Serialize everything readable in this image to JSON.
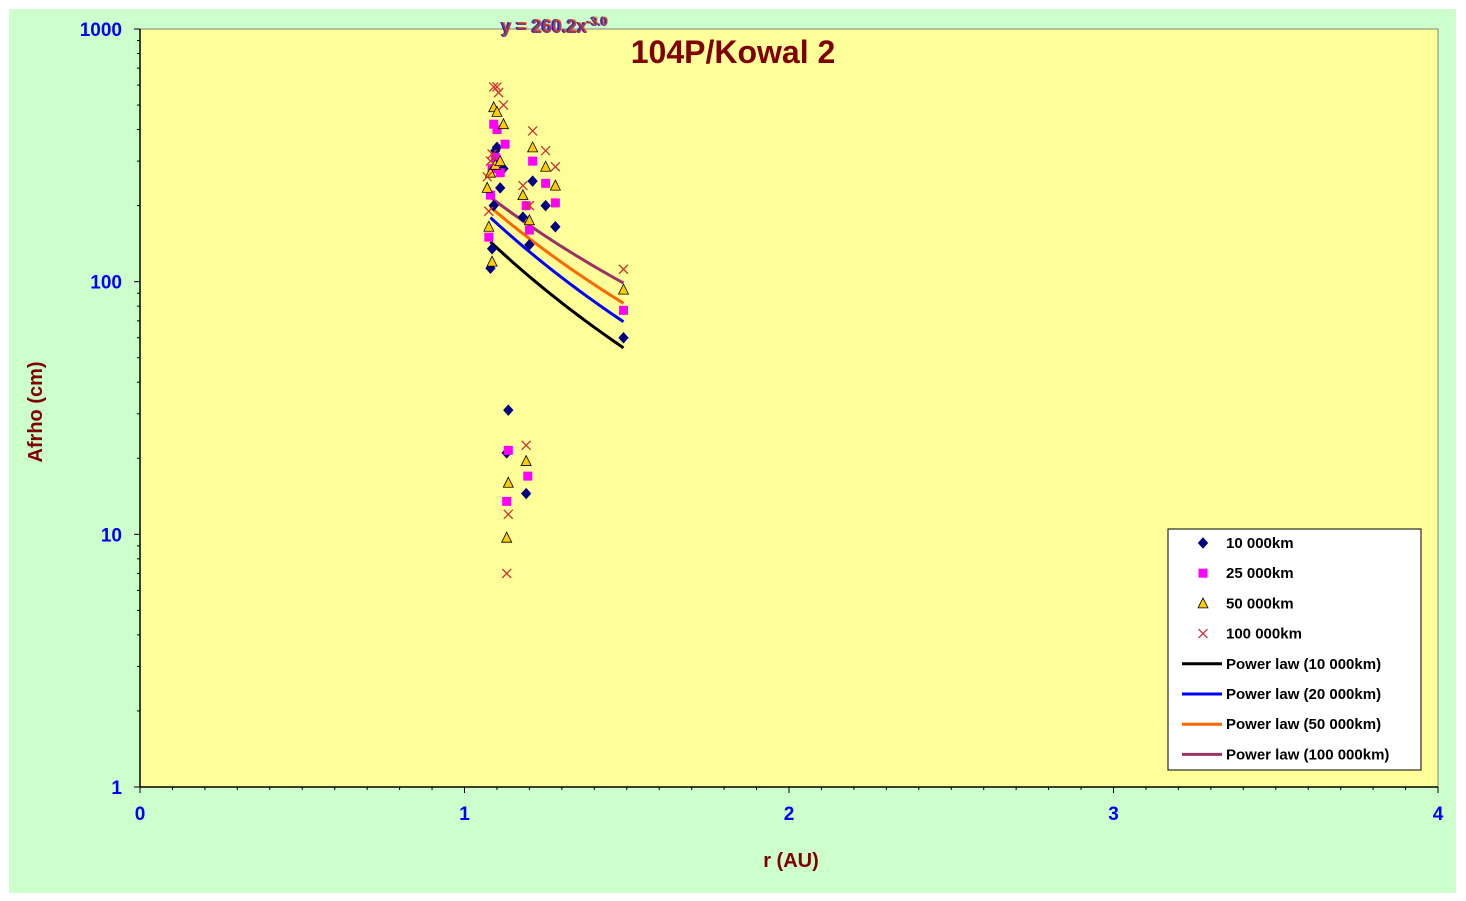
{
  "chart_data": {
    "type": "scatter",
    "title": "104P/Kowal 2",
    "xlabel": "r (AU)",
    "ylabel": "Afrho (cm)",
    "xlim": [
      0,
      4
    ],
    "ylim": [
      1,
      1000
    ],
    "yscale": "log",
    "x_ticks": [
      "0",
      "1",
      "2",
      "3",
      "4"
    ],
    "y_ticks": [
      "1",
      "10",
      "100",
      "1000"
    ],
    "grid": false,
    "legend_position": "bottom-right",
    "trendline_equation_overlap": "y = 260.2x^-3.0",
    "trendline_eq_parts": {
      "base": "y = 260.2x",
      "exp": "-3.0"
    },
    "colors": {
      "background": "#ccffcc",
      "plot_area": "#ffff99",
      "title": "#800000",
      "tick_labels": "#0000ff"
    },
    "series": [
      {
        "name": "10 000km",
        "kind": "marker",
        "marker": "diamond",
        "color": "#000080",
        "points": [
          [
            1.08,
            113
          ],
          [
            1.085,
            135
          ],
          [
            1.09,
            200
          ],
          [
            1.095,
            330
          ],
          [
            1.1,
            340
          ],
          [
            1.11,
            235
          ],
          [
            1.12,
            280
          ],
          [
            1.13,
            21
          ],
          [
            1.135,
            31
          ],
          [
            1.18,
            180
          ],
          [
            1.19,
            14.5
          ],
          [
            1.2,
            140
          ],
          [
            1.21,
            250
          ],
          [
            1.25,
            200
          ],
          [
            1.28,
            165
          ],
          [
            1.49,
            60
          ]
        ]
      },
      {
        "name": "25 000km",
        "kind": "marker",
        "marker": "square",
        "color": "#ff00ff",
        "points": [
          [
            1.075,
            150
          ],
          [
            1.08,
            220
          ],
          [
            1.085,
            280
          ],
          [
            1.09,
            420
          ],
          [
            1.095,
            310
          ],
          [
            1.1,
            400
          ],
          [
            1.11,
            270
          ],
          [
            1.125,
            350
          ],
          [
            1.13,
            13.5
          ],
          [
            1.135,
            21.5
          ],
          [
            1.19,
            200
          ],
          [
            1.195,
            17
          ],
          [
            1.2,
            160
          ],
          [
            1.21,
            300
          ],
          [
            1.25,
            245
          ],
          [
            1.28,
            205
          ],
          [
            1.49,
            77
          ]
        ]
      },
      {
        "name": "50 000km",
        "kind": "marker",
        "marker": "triangle",
        "color": "#ffcc00",
        "points": [
          [
            1.07,
            235
          ],
          [
            1.075,
            165
          ],
          [
            1.08,
            270
          ],
          [
            1.085,
            120
          ],
          [
            1.09,
            490
          ],
          [
            1.095,
            290
          ],
          [
            1.1,
            470
          ],
          [
            1.11,
            300
          ],
          [
            1.12,
            420
          ],
          [
            1.13,
            9.7
          ],
          [
            1.135,
            16
          ],
          [
            1.18,
            220
          ],
          [
            1.19,
            19.5
          ],
          [
            1.2,
            175
          ],
          [
            1.21,
            340
          ],
          [
            1.25,
            285
          ],
          [
            1.28,
            240
          ],
          [
            1.49,
            93
          ]
        ]
      },
      {
        "name": "100 000km",
        "kind": "marker",
        "marker": "x",
        "color": "#cc3333",
        "points": [
          [
            1.07,
            260
          ],
          [
            1.075,
            190
          ],
          [
            1.08,
            300
          ],
          [
            1.085,
            320
          ],
          [
            1.09,
            590
          ],
          [
            1.1,
            590
          ],
          [
            1.105,
            560
          ],
          [
            1.12,
            500
          ],
          [
            1.13,
            7
          ],
          [
            1.135,
            12
          ],
          [
            1.18,
            240
          ],
          [
            1.19,
            22.5
          ],
          [
            1.2,
            200
          ],
          [
            1.21,
            395
          ],
          [
            1.25,
            330
          ],
          [
            1.28,
            285
          ],
          [
            1.49,
            112
          ]
        ]
      },
      {
        "name": "Power law (10 000km)",
        "kind": "line",
        "color": "#000000",
        "a": 181,
        "b": -3.0,
        "x_range": [
          1.08,
          1.49
        ]
      },
      {
        "name": "Power law (20 000km)",
        "kind": "line",
        "color": "#0000ff",
        "a": 225,
        "b": -2.95,
        "x_range": [
          1.08,
          1.49
        ]
      },
      {
        "name": "Power law (50 000km)",
        "kind": "line",
        "color": "#ff6600",
        "a": 243,
        "b": -2.72,
        "x_range": [
          1.08,
          1.49
        ]
      },
      {
        "name": "Power law (100 000km)",
        "kind": "line",
        "color": "#993366",
        "a": 260.2,
        "b": -3.0,
        "eff_b": -2.43,
        "x_range": [
          1.08,
          1.49
        ]
      }
    ]
  }
}
